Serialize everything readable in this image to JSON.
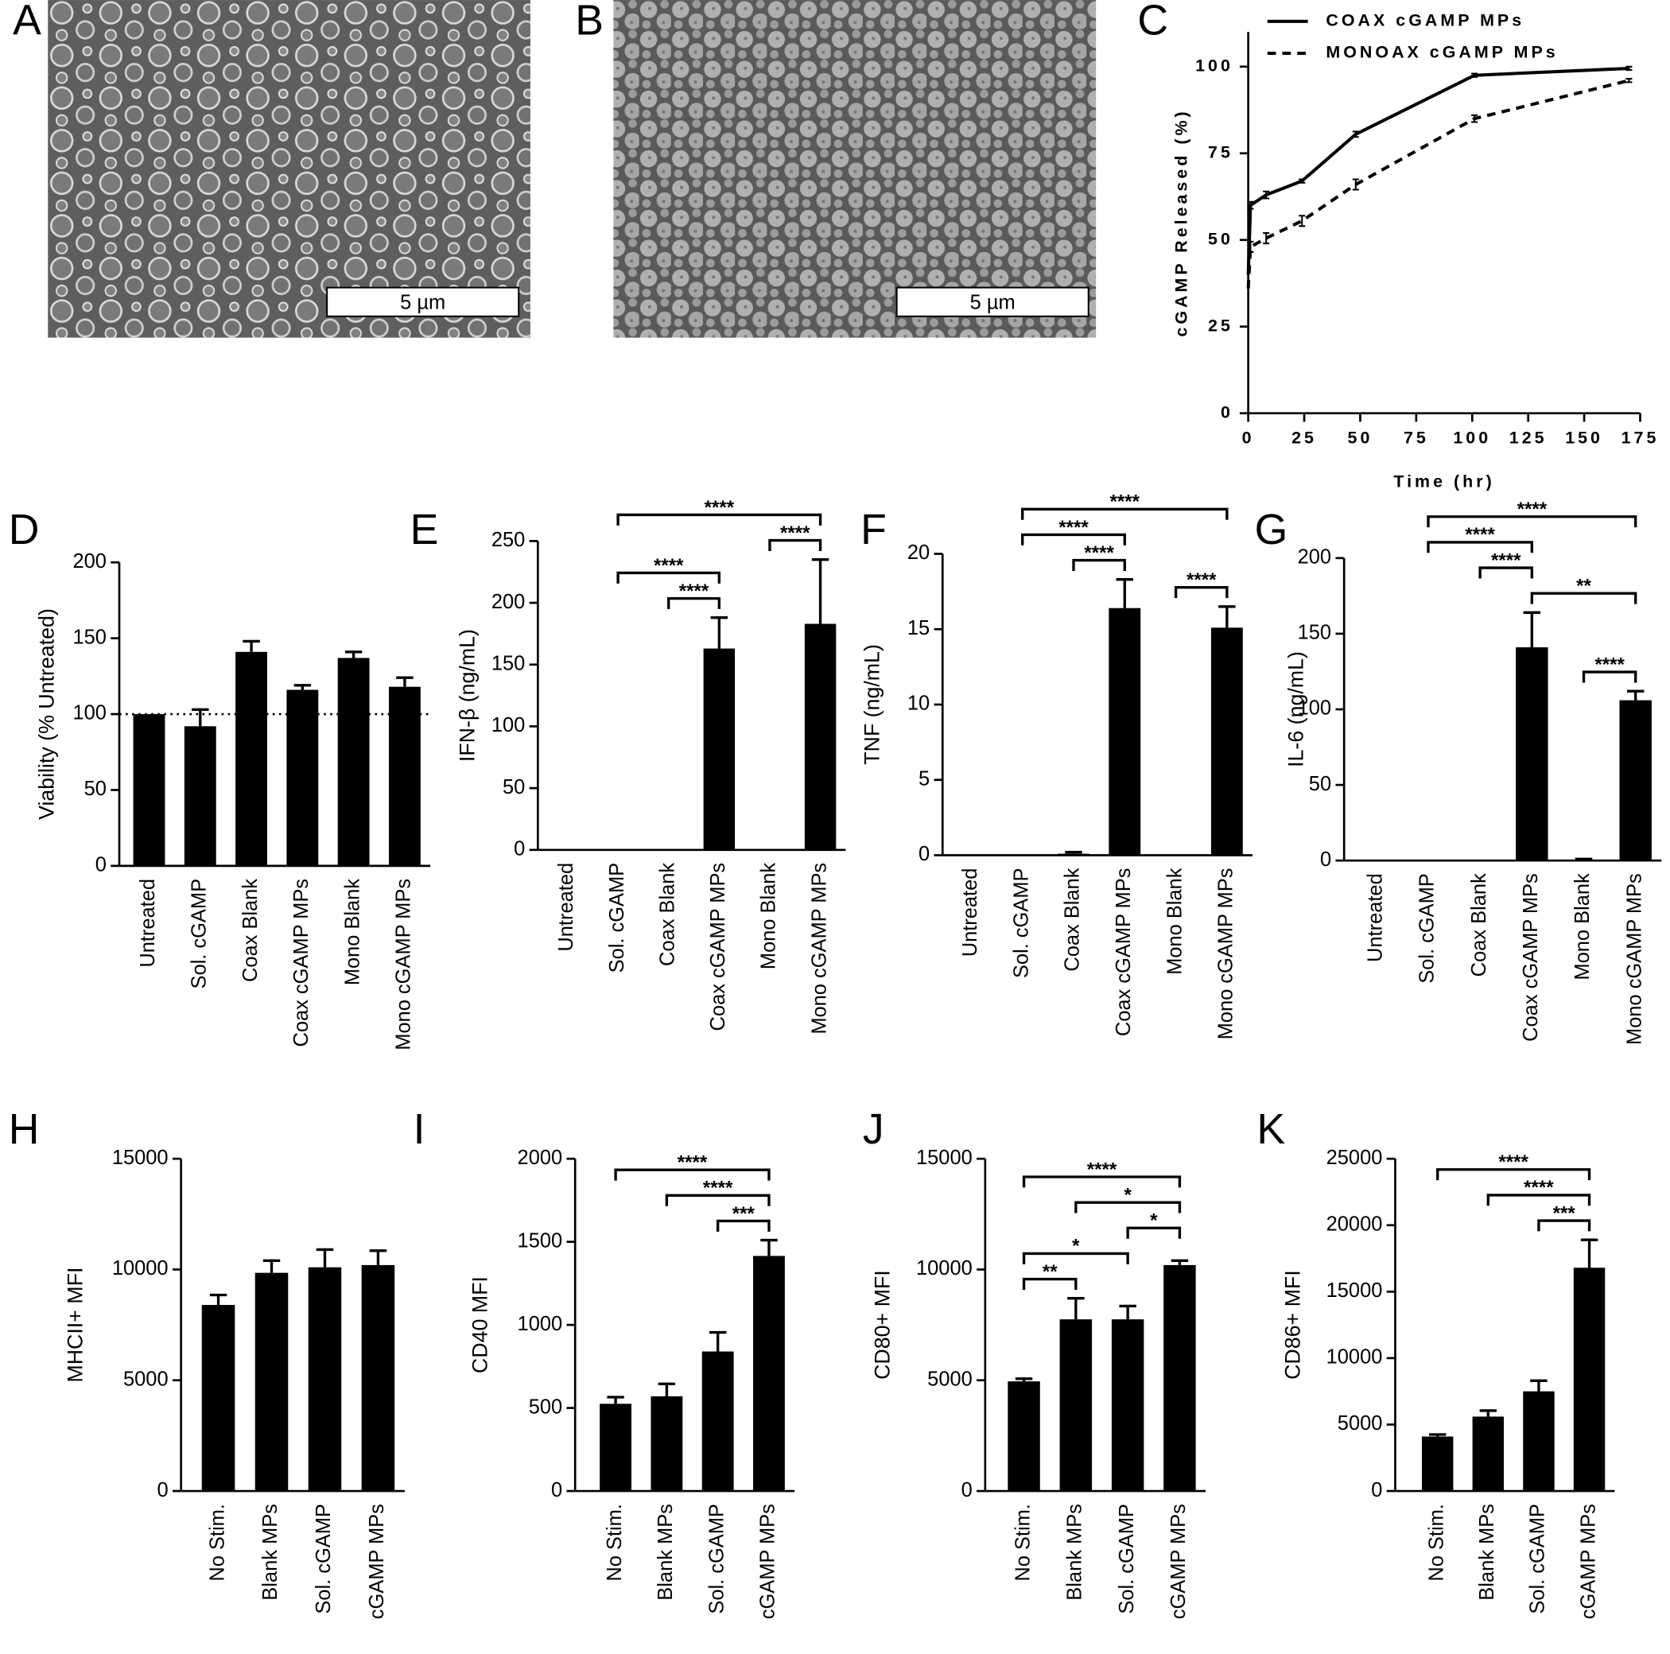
{
  "images": [
    {
      "panel": "A",
      "scale_bar": "5 µm"
    },
    {
      "panel": "B",
      "scale_bar": "5 µm"
    }
  ],
  "chart_data": [
    {
      "panel": "C",
      "type": "line",
      "x_label": "Time (hr)",
      "y_label": "cGAMP Released (%)",
      "x": [
        0,
        1,
        8,
        24,
        48,
        101,
        170
      ],
      "series": [
        {
          "name": "COAX cGAMP MPs",
          "color": "#000000",
          "line_style": "solid",
          "values": [
            40,
            60,
            63,
            67,
            80.5,
            97.5,
            99.5
          ],
          "errors": [
            0,
            1,
            1,
            0.5,
            0.8,
            0.5,
            0.5
          ]
        },
        {
          "name": "MONOAX cGAMP MPs",
          "color": "#000000",
          "line_style": "dashed",
          "values": [
            36,
            48,
            50.5,
            55.5,
            66,
            85,
            96
          ],
          "errors": [
            0,
            1.5,
            1.5,
            1.5,
            1.5,
            1,
            0.5
          ]
        }
      ],
      "xlim": [
        0,
        175
      ],
      "xticks": [
        0,
        25,
        50,
        75,
        100,
        125,
        150,
        175
      ],
      "ylim": [
        0,
        110
      ],
      "yticks": [
        0,
        25,
        50,
        75,
        100
      ],
      "legend": "top"
    },
    {
      "panel": "D",
      "type": "bar",
      "y_label": "Viability (% Untreated)",
      "color": "#000000",
      "categories": [
        "Untreated",
        "Sol. cGAMP",
        "Coax Blank",
        "Coax cGAMP MPs",
        "Mono Blank",
        "Mono cGAMP MPs"
      ],
      "values": [
        100,
        92,
        141,
        116,
        137,
        118
      ],
      "errors": [
        0,
        11,
        7,
        3,
        4,
        6
      ],
      "ylim": [
        0,
        200
      ],
      "yticks": [
        0,
        50,
        100,
        150,
        200
      ],
      "reference_line": 100,
      "brackets": []
    },
    {
      "panel": "E",
      "type": "bar",
      "y_label": "IFN-β (ng/mL)",
      "color": "#000000",
      "categories": [
        "Untreated",
        "Sol. cGAMP",
        "Coax Blank",
        "Coax cGAMP MPs",
        "Mono Blank",
        "Mono cGAMP MPs"
      ],
      "values": [
        0,
        0,
        0.5,
        163,
        0.5,
        183
      ],
      "errors": [
        0,
        0,
        0,
        25,
        0,
        52
      ],
      "ylim": [
        0,
        250
      ],
      "yticks": [
        0,
        50,
        100,
        150,
        200,
        250
      ],
      "brackets": [
        {
          "from": 1,
          "to": 5,
          "label": "****"
        },
        {
          "from": 4,
          "to": 5,
          "label": "****"
        },
        {
          "from": 1,
          "to": 3,
          "label": "****"
        },
        {
          "from": 2,
          "to": 3,
          "label": "****"
        }
      ]
    },
    {
      "panel": "F",
      "type": "bar",
      "y_label": "TNF (ng/mL)",
      "color": "#000000",
      "categories": [
        "Untreated",
        "Sol. cGAMP",
        "Coax Blank",
        "Coax cGAMP MPs",
        "Mono Blank",
        "Mono cGAMP MPs"
      ],
      "values": [
        0,
        0,
        0.1,
        16.4,
        0.05,
        15.1
      ],
      "errors": [
        0,
        0,
        0.1,
        1.9,
        0,
        1.4
      ],
      "ylim": [
        0,
        20
      ],
      "yticks": [
        0,
        5,
        10,
        15,
        20
      ],
      "brackets": [
        {
          "from": 1,
          "to": 5,
          "label": "****"
        },
        {
          "from": 1,
          "to": 3,
          "label": "****"
        },
        {
          "from": 2,
          "to": 3,
          "label": "****"
        },
        {
          "from": 4,
          "to": 5,
          "label": "****"
        }
      ]
    },
    {
      "panel": "G",
      "type": "bar",
      "y_label": "IL-6 (ng/mL)",
      "color": "#000000",
      "categories": [
        "Untreated",
        "Sol. cGAMP",
        "Coax Blank",
        "Coax cGAMP MPs",
        "Mono Blank",
        "Mono cGAMP MPs"
      ],
      "values": [
        0,
        0,
        0,
        141,
        0.5,
        106
      ],
      "errors": [
        0,
        0,
        0,
        23,
        0.5,
        6
      ],
      "ylim": [
        0,
        200
      ],
      "yticks": [
        0,
        50,
        100,
        150,
        200
      ],
      "brackets": [
        {
          "from": 1,
          "to": 5,
          "label": "****"
        },
        {
          "from": 1,
          "to": 3,
          "label": "****"
        },
        {
          "from": 2,
          "to": 3,
          "label": "****"
        },
        {
          "from": 3,
          "to": 5,
          "label": "**"
        },
        {
          "from": 4,
          "to": 5,
          "label": "****"
        }
      ]
    },
    {
      "panel": "H",
      "type": "bar",
      "y_label": "MHCII+ MFI",
      "color": "#000000",
      "categories": [
        "No Stim.",
        "Blank MPs",
        "Sol. cGAMP",
        "cGAMP MPs"
      ],
      "values": [
        8400,
        9850,
        10100,
        10200
      ],
      "errors": [
        450,
        550,
        800,
        650
      ],
      "ylim": [
        0,
        15000
      ],
      "yticks": [
        0,
        5000,
        10000,
        15000
      ],
      "brackets": []
    },
    {
      "panel": "I",
      "type": "bar",
      "y_label": "CD40 MFI",
      "color": "#000000",
      "categories": [
        "No Stim.",
        "Blank MPs",
        "Sol. cGAMP",
        "cGAMP MPs"
      ],
      "values": [
        525,
        570,
        840,
        1415
      ],
      "errors": [
        40,
        75,
        115,
        95
      ],
      "ylim": [
        0,
        2000
      ],
      "yticks": [
        0,
        500,
        1000,
        1500,
        2000
      ],
      "brackets": [
        {
          "from": 0,
          "to": 3,
          "label": "****"
        },
        {
          "from": 1,
          "to": 3,
          "label": "****"
        },
        {
          "from": 2,
          "to": 3,
          "label": "***"
        }
      ]
    },
    {
      "panel": "J",
      "type": "bar",
      "y_label": "CD80+ MFI",
      "color": "#000000",
      "categories": [
        "No Stim.",
        "Blank MPs",
        "Sol. cGAMP",
        "cGAMP MPs"
      ],
      "values": [
        4950,
        7750,
        7750,
        10200
      ],
      "errors": [
        120,
        950,
        600,
        200
      ],
      "ylim": [
        0,
        15000
      ],
      "yticks": [
        0,
        5000,
        10000,
        15000
      ],
      "brackets": [
        {
          "from": 0,
          "to": 3,
          "label": "****"
        },
        {
          "from": 1,
          "to": 3,
          "label": "*"
        },
        {
          "from": 2,
          "to": 3,
          "label": "*"
        },
        {
          "from": 0,
          "to": 2,
          "label": "*"
        },
        {
          "from": 0,
          "to": 1,
          "label": "**"
        }
      ]
    },
    {
      "panel": "K",
      "type": "bar",
      "y_label": "CD86+ MFI",
      "color": "#000000",
      "categories": [
        "No Stim.",
        "Blank MPs",
        "Sol. cGAMP",
        "cGAMP MPs"
      ],
      "values": [
        4100,
        5600,
        7500,
        16800
      ],
      "errors": [
        150,
        450,
        800,
        2100
      ],
      "ylim": [
        0,
        25000
      ],
      "yticks": [
        0,
        5000,
        10000,
        15000,
        20000,
        25000
      ],
      "brackets": [
        {
          "from": 0,
          "to": 3,
          "label": "****"
        },
        {
          "from": 1,
          "to": 3,
          "label": "****"
        },
        {
          "from": 2,
          "to": 3,
          "label": "***"
        }
      ]
    }
  ]
}
